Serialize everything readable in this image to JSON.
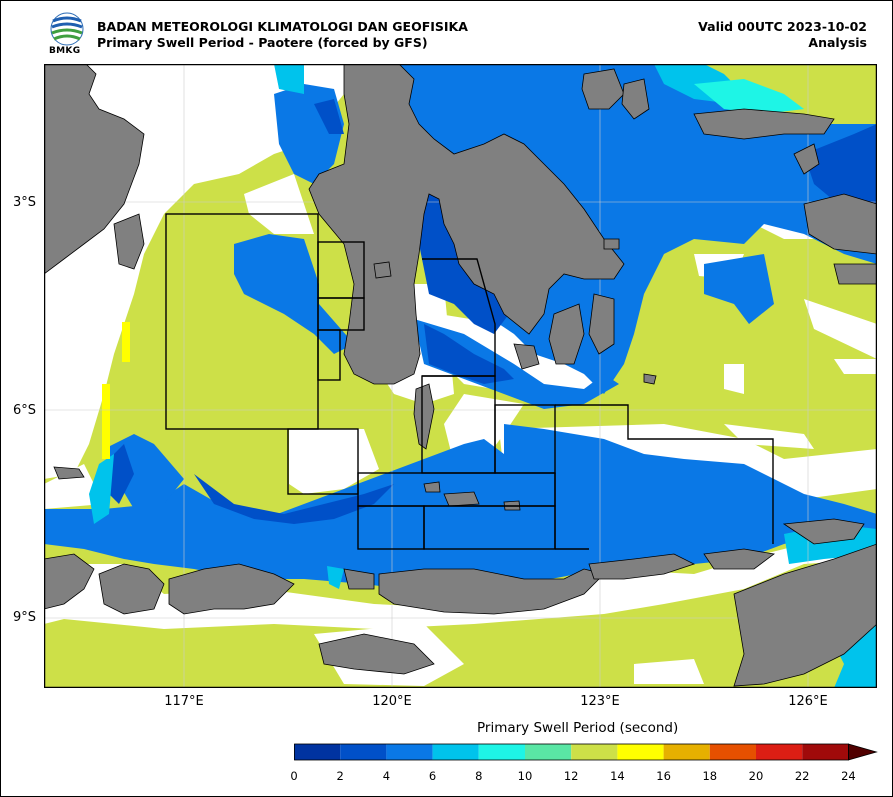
{
  "header": {
    "agency": "BADAN METEOROLOGI KLIMATOLOGI DAN GEOFISIKA",
    "subtitle": "Primary Swell Period - Paotere (forced by GFS)",
    "valid": "Valid 00UTC 2023-10-02",
    "kind": "Analysis",
    "logo_text": "BMKG"
  },
  "map": {
    "lat_labels": [
      "3°S",
      "6°S",
      "9°S"
    ],
    "lon_labels": [
      "117°E",
      "120°E",
      "123°E",
      "126°E"
    ],
    "land_color": "#808080",
    "grid_color": "#cccccc"
  },
  "colorbar": {
    "title": "Primary Swell Period (second)",
    "ticks": [
      "0",
      "2",
      "4",
      "6",
      "8",
      "10",
      "12",
      "14",
      "16",
      "18",
      "20",
      "22",
      "24"
    ],
    "colors": [
      "#0033a0",
      "#0050c8",
      "#0a78e6",
      "#00c3ec",
      "#1ef5e6",
      "#5ae6a5",
      "#cde048",
      "#ffff00",
      "#e6b000",
      "#e65000",
      "#dc1e14",
      "#a00a0a",
      "#500000"
    ]
  }
}
